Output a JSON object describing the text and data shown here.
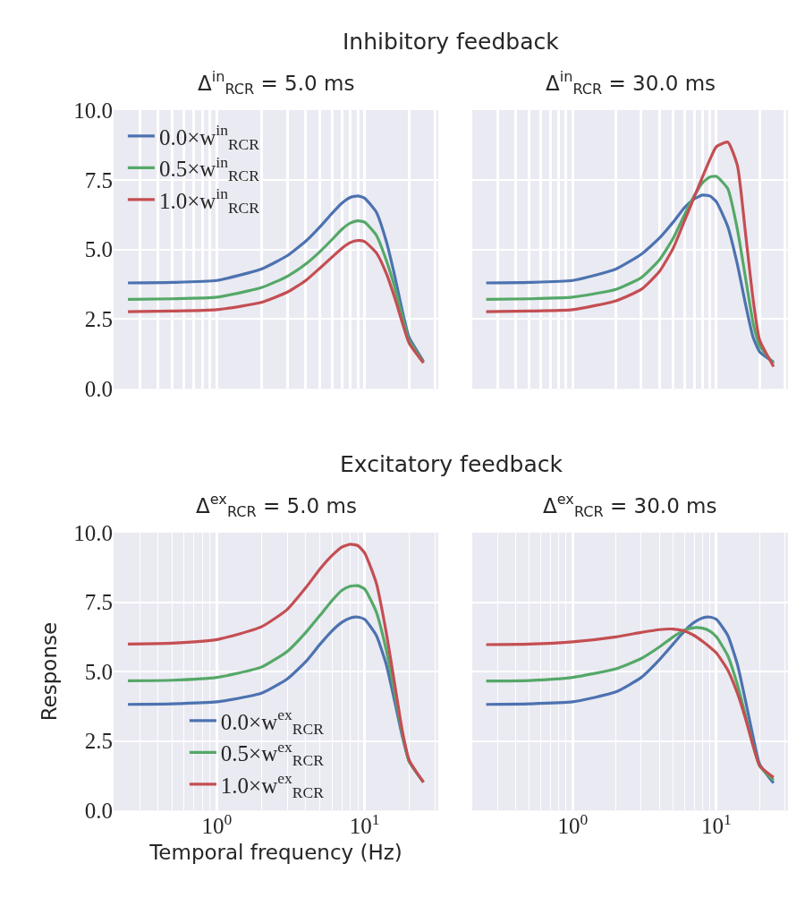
{
  "chart_data": [
    {
      "type": "line",
      "title": "Δ$^{in}$$_{RCR}$ = 5.0 ms",
      "annotations": [
        "Inhibitory feedback"
      ],
      "x": [
        0.25,
        0.5,
        1,
        2,
        3,
        4,
        5,
        6,
        7,
        8,
        9,
        10,
        12,
        14,
        16,
        18,
        20,
        25
      ],
      "xlim": [
        0.2,
        31.5
      ],
      "xticks": [
        0.2,
        0.3,
        0.4,
        0.5,
        0.6,
        0.7,
        0.8,
        0.9,
        1,
        2,
        3,
        4,
        5,
        6,
        7,
        8,
        9,
        10,
        20,
        30
      ],
      "ylim": [
        0,
        10
      ],
      "yticks": [
        {
          "value": 0,
          "label": "0.0"
        },
        {
          "value": 2.5,
          "label": "2.5"
        },
        {
          "value": 5,
          "label": "5.0"
        },
        {
          "value": 7.5,
          "label": "7.5"
        },
        {
          "value": 10,
          "label": "10.0"
        }
      ],
      "log": "x",
      "grid": true,
      "tick_labels": "y",
      "legend": "top left",
      "series": [
        {
          "name": "0.0×w$^{in}$$_{RCR}$",
          "color": "#4c72b0",
          "values": [
            3.8,
            3.82,
            3.89,
            4.3,
            4.78,
            5.3,
            5.82,
            6.29,
            6.66,
            6.87,
            6.92,
            6.84,
            6.34,
            5.3,
            4.04,
            2.79,
            1.85,
            0.99
          ]
        },
        {
          "name": "0.5×w$^{in}$$_{RCR}$",
          "color": "#55a868",
          "values": [
            3.21,
            3.23,
            3.29,
            3.63,
            4.04,
            4.48,
            4.93,
            5.35,
            5.72,
            5.95,
            6.03,
            5.98,
            5.51,
            4.62,
            3.63,
            2.58,
            1.75,
            0.96
          ]
        },
        {
          "name": "1.0×w$^{in}$$_{RCR}$",
          "color": "#c44e52",
          "values": [
            2.77,
            2.79,
            2.84,
            3.1,
            3.47,
            3.89,
            4.34,
            4.72,
            5.04,
            5.25,
            5.32,
            5.28,
            4.88,
            4.15,
            3.26,
            2.37,
            1.64,
            0.93
          ]
        }
      ]
    },
    {
      "type": "line",
      "title": "Δ$^{in}$$_{RCR}$ = 30.0 ms",
      "x": [
        0.25,
        0.5,
        1,
        2,
        3,
        4,
        5,
        6,
        7,
        8,
        9,
        10,
        12,
        14,
        16,
        18,
        20,
        25
      ],
      "xlim": [
        0.2,
        31.5
      ],
      "xticks": [
        0.2,
        0.3,
        0.4,
        0.5,
        0.6,
        0.7,
        0.8,
        0.9,
        1,
        2,
        3,
        4,
        5,
        6,
        7,
        8,
        9,
        10,
        20,
        30
      ],
      "ylim": [
        0,
        10
      ],
      "yticks": [
        0,
        2.5,
        5,
        7.5,
        10
      ],
      "log": "x",
      "grid": true,
      "tick_labels": false,
      "series": [
        {
          "color": "#4c72b0",
          "values": [
            3.8,
            3.82,
            3.89,
            4.3,
            4.83,
            5.4,
            5.98,
            6.5,
            6.81,
            6.95,
            6.92,
            6.71,
            5.82,
            4.46,
            3.0,
            1.85,
            1.33,
            0.96
          ]
        },
        {
          "color": "#55a868",
          "values": [
            3.21,
            3.23,
            3.29,
            3.57,
            3.99,
            4.62,
            5.4,
            6.24,
            6.92,
            7.39,
            7.6,
            7.62,
            7.18,
            5.72,
            3.94,
            2.37,
            1.54,
            0.91
          ]
        },
        {
          "color": "#c44e52",
          "values": [
            2.77,
            2.79,
            2.84,
            3.16,
            3.57,
            4.2,
            5.04,
            6.03,
            6.87,
            7.6,
            8.22,
            8.69,
            8.85,
            8.01,
            5.51,
            3.21,
            1.75,
            0.8
          ]
        }
      ]
    },
    {
      "type": "line",
      "title": "Δ$^{ex}$$_{RCR}$ = 5.0 ms",
      "annotations": [
        "Excitatory feedback"
      ],
      "xlabel": "Temporal frequency (Hz)",
      "ylabel": "Response",
      "x": [
        0.25,
        0.5,
        1,
        2,
        3,
        4,
        5,
        6,
        7,
        8,
        9,
        10,
        12,
        14,
        16,
        18,
        20,
        25
      ],
      "xlim": [
        0.2,
        31.5
      ],
      "xticks": [
        {
          "value": 0.2,
          "label": null
        },
        {
          "value": 0.3,
          "label": null
        },
        {
          "value": 0.4,
          "label": null
        },
        {
          "value": 0.5,
          "label": null
        },
        {
          "value": 0.6,
          "label": null
        },
        {
          "value": 0.7,
          "label": null
        },
        {
          "value": 0.8,
          "label": null
        },
        {
          "value": 0.9,
          "label": null
        },
        {
          "value": 1,
          "label": "10$^{0}$"
        },
        {
          "value": 2,
          "label": null
        },
        {
          "value": 3,
          "label": null
        },
        {
          "value": 4,
          "label": null
        },
        {
          "value": 5,
          "label": null
        },
        {
          "value": 6,
          "label": null
        },
        {
          "value": 7,
          "label": null
        },
        {
          "value": 8,
          "label": null
        },
        {
          "value": 9,
          "label": null
        },
        {
          "value": 10,
          "label": "10$^{1}$"
        },
        {
          "value": 20,
          "label": null
        },
        {
          "value": 30,
          "label": null
        }
      ],
      "ylim": [
        0,
        10
      ],
      "yticks": [
        {
          "value": 0,
          "label": "0.0"
        },
        {
          "value": 2.5,
          "label": "2.5"
        },
        {
          "value": 5,
          "label": "5.0"
        },
        {
          "value": 7.5,
          "label": "7.5"
        },
        {
          "value": 10,
          "label": "10.0"
        }
      ],
      "log": "x",
      "grid": true,
      "legend": "bottom",
      "series": [
        {
          "name": "0.0×w$^{ex}$$_{RCR}$",
          "color": "#4c72b0",
          "values": [
            3.82,
            3.84,
            3.91,
            4.22,
            4.74,
            5.36,
            5.99,
            6.46,
            6.77,
            6.93,
            6.96,
            6.88,
            6.3,
            5.26,
            3.91,
            2.66,
            1.77,
            1.02
          ]
        },
        {
          "name": "0.5×w$^{ex}$$_{RCR}$",
          "color": "#55a868",
          "values": [
            4.67,
            4.69,
            4.79,
            5.16,
            5.73,
            6.41,
            7.03,
            7.55,
            7.92,
            8.07,
            8.09,
            7.97,
            7.14,
            5.78,
            4.22,
            2.76,
            1.77,
            1.02
          ]
        },
        {
          "name": "1.0×w$^{ex}$$_{RCR}$",
          "color": "#c44e52",
          "values": [
            5.99,
            6.02,
            6.15,
            6.61,
            7.24,
            8.02,
            8.7,
            9.17,
            9.48,
            9.58,
            9.53,
            9.27,
            8.18,
            6.41,
            4.53,
            2.86,
            1.82,
            1.02
          ]
        }
      ]
    },
    {
      "type": "line",
      "title": "Δ$^{ex}$$_{RCR}$ = 30.0 ms",
      "x": [
        0.25,
        0.5,
        1,
        2,
        3,
        4,
        5,
        6,
        7,
        8,
        9,
        10,
        12,
        14,
        16,
        18,
        20,
        25
      ],
      "xlim": [
        0.2,
        31.5
      ],
      "xticks": [
        {
          "value": 0.2,
          "label": null
        },
        {
          "value": 0.3,
          "label": null
        },
        {
          "value": 0.4,
          "label": null
        },
        {
          "value": 0.5,
          "label": null
        },
        {
          "value": 0.6,
          "label": null
        },
        {
          "value": 0.7,
          "label": null
        },
        {
          "value": 0.8,
          "label": null
        },
        {
          "value": 0.9,
          "label": null
        },
        {
          "value": 1,
          "label": "10$^{0}$"
        },
        {
          "value": 2,
          "label": null
        },
        {
          "value": 3,
          "label": null
        },
        {
          "value": 4,
          "label": null
        },
        {
          "value": 5,
          "label": null
        },
        {
          "value": 6,
          "label": null
        },
        {
          "value": 7,
          "label": null
        },
        {
          "value": 8,
          "label": null
        },
        {
          "value": 9,
          "label": null
        },
        {
          "value": 10,
          "label": "10$^{1}$"
        },
        {
          "value": 20,
          "label": null
        },
        {
          "value": 30,
          "label": null
        }
      ],
      "ylim": [
        0,
        10
      ],
      "yticks": [
        0,
        2.5,
        5,
        7.5,
        10
      ],
      "log": "x",
      "grid": true,
      "tick_labels": "x",
      "series": [
        {
          "color": "#4c72b0",
          "values": [
            3.82,
            3.84,
            3.91,
            4.27,
            4.79,
            5.42,
            5.99,
            6.46,
            6.77,
            6.93,
            6.96,
            6.88,
            6.3,
            5.26,
            3.91,
            2.66,
            1.67,
            0.99
          ]
        },
        {
          "color": "#55a868",
          "values": [
            4.66,
            4.68,
            4.79,
            5.1,
            5.47,
            5.88,
            6.25,
            6.49,
            6.58,
            6.56,
            6.46,
            6.25,
            5.57,
            4.53,
            3.39,
            2.34,
            1.61,
            1.09
          ]
        },
        {
          "color": "#c44e52",
          "values": [
            5.97,
            5.99,
            6.07,
            6.25,
            6.41,
            6.51,
            6.53,
            6.46,
            6.3,
            6.09,
            5.88,
            5.67,
            5.05,
            4.22,
            3.28,
            2.34,
            1.61,
            1.19
          ]
        }
      ]
    }
  ]
}
